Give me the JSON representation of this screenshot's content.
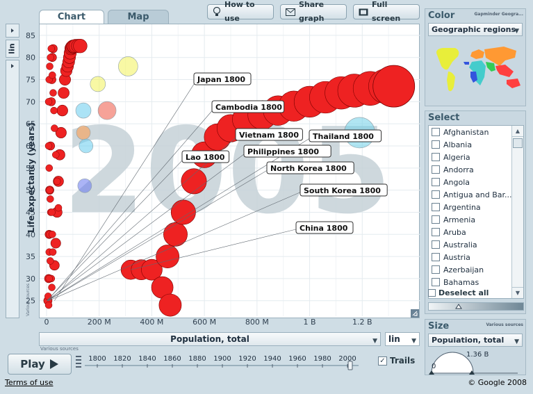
{
  "tabs": {
    "chart": "Chart",
    "map": "Map"
  },
  "toolbar": {
    "how_to_use": "How to use",
    "share": "Share graph",
    "fullscreen": "Full screen"
  },
  "yaxis": {
    "label": "Life expectancy (years)",
    "scale": "lin",
    "sources": "Various sources"
  },
  "xaxis": {
    "label": "Population, total",
    "scale": "lin",
    "sources": "Various sources"
  },
  "year_watermark": "2005",
  "chart_data": {
    "type": "scatter",
    "xlabel": "Population, total",
    "ylabel": "Life expectancy (years)",
    "xlim": [
      0,
      1400
    ],
    "ylim": [
      21.5,
      87.5
    ],
    "x_unit": "M",
    "x_ticks": [
      0,
      200,
      400,
      600,
      800,
      1000,
      1200
    ],
    "x_tick_labels": [
      "0",
      "200 M",
      "400 M",
      "600 M",
      "800 M",
      "1 B",
      "1.2 B"
    ],
    "y_ticks": [
      25,
      30,
      35,
      40,
      45,
      50,
      55,
      60,
      65,
      70,
      75,
      80,
      85
    ],
    "year": 2005,
    "labels": [
      {
        "name": "Japan 1800",
        "x": 30,
        "y": 25
      },
      {
        "name": "Cambodia 1800",
        "x": 3,
        "y": 25
      },
      {
        "name": "Vietnam 1800",
        "x": 7,
        "y": 25
      },
      {
        "name": "Lao 1800",
        "x": 1,
        "y": 25
      },
      {
        "name": "Thailand 1800",
        "x": 4,
        "y": 25
      },
      {
        "name": "Philippines 1800",
        "x": 2,
        "y": 25
      },
      {
        "name": "North Korea 1800",
        "x": 5,
        "y": 25
      },
      {
        "name": "South Korea 1800",
        "x": 8,
        "y": 25
      },
      {
        "name": "China 1800",
        "x": 320,
        "y": 32
      }
    ],
    "trails": [
      {
        "name": "China",
        "color": "#ee2222",
        "points": [
          [
            320,
            32
          ],
          [
            360,
            32
          ],
          [
            400,
            32
          ],
          [
            440,
            28
          ],
          [
            470,
            24
          ],
          [
            460,
            35
          ],
          [
            490,
            40
          ],
          [
            520,
            45
          ],
          [
            560,
            52
          ],
          [
            600,
            58
          ],
          [
            650,
            62
          ],
          [
            700,
            64
          ],
          [
            760,
            66
          ],
          [
            820,
            67
          ],
          [
            880,
            68
          ],
          [
            940,
            69
          ],
          [
            1000,
            70
          ],
          [
            1060,
            71
          ],
          [
            1120,
            72
          ],
          [
            1170,
            72.5
          ],
          [
            1230,
            73
          ],
          [
            1290,
            73.5
          ],
          [
            1320,
            73.5
          ]
        ]
      },
      {
        "name": "Japan",
        "color": "#ee2222",
        "points": [
          [
            30,
            33
          ],
          [
            35,
            38
          ],
          [
            40,
            45
          ],
          [
            45,
            52
          ],
          [
            50,
            58
          ],
          [
            55,
            63
          ],
          [
            60,
            68
          ],
          [
            65,
            72
          ],
          [
            70,
            75
          ],
          [
            75,
            77
          ],
          [
            80,
            78
          ],
          [
            84,
            79
          ],
          [
            87,
            80
          ],
          [
            90,
            81
          ],
          [
            93,
            82
          ],
          [
            96,
            82.3
          ],
          [
            100,
            82.5
          ],
          [
            104,
            82.5
          ],
          [
            110,
            82.6
          ],
          [
            120,
            82.6
          ],
          [
            128,
            82.6
          ]
        ]
      },
      {
        "name": "Other Asia",
        "color": "#ee2222",
        "points": [
          [
            5,
            25
          ],
          [
            8,
            30
          ],
          [
            10,
            40
          ],
          [
            12,
            50
          ],
          [
            15,
            60
          ],
          [
            18,
            70
          ],
          [
            20,
            75
          ],
          [
            22,
            80
          ],
          [
            25,
            82
          ]
        ]
      }
    ],
    "bubbles": [
      {
        "x": 1320,
        "y": 73.5,
        "color": "#ee2222",
        "size": 30
      },
      {
        "x": 1190,
        "y": 63,
        "color": "#6fd0e8",
        "size": 22
      },
      {
        "x": 310,
        "y": 78,
        "color": "#f2f25a",
        "size": 14
      },
      {
        "x": 195,
        "y": 74,
        "color": "#f2f25a",
        "size": 11
      },
      {
        "x": 230,
        "y": 68,
        "color": "#ee5544",
        "size": 13
      },
      {
        "x": 140,
        "y": 68,
        "color": "#66ccee",
        "size": 11
      },
      {
        "x": 140,
        "y": 63,
        "color": "#ff9944",
        "size": 10
      },
      {
        "x": 150,
        "y": 60,
        "color": "#66ccee",
        "size": 10
      },
      {
        "x": 145,
        "y": 51,
        "color": "#6677ee",
        "size": 10
      }
    ]
  },
  "sources_note": "Various sources",
  "play": {
    "label": "Play"
  },
  "timeline": {
    "years": [
      "1800",
      "1820",
      "1840",
      "1860",
      "1880",
      "1900",
      "1920",
      "1940",
      "1960",
      "1980",
      "2000"
    ],
    "current": 2005
  },
  "trails": {
    "label": "Trails",
    "checked": true
  },
  "color_panel": {
    "title": "Color",
    "source": "Gapminder Geogra...",
    "selected": "Geographic regions"
  },
  "select_panel": {
    "title": "Select",
    "items": [
      "Afghanistan",
      "Albania",
      "Algeria",
      "Andorra",
      "Angola",
      "Antigua and Bar...",
      "Argentina",
      "Armenia",
      "Aruba",
      "Australia",
      "Austria",
      "Azerbaijan",
      "Bahamas"
    ],
    "deselect": "Deselect all"
  },
  "size_panel": {
    "title": "Size",
    "sources": "Various sources",
    "selected": "Population, total",
    "value": "1.36 B",
    "min": "0"
  },
  "footer": {
    "terms": "Terms of use",
    "copyright": "© Google 2008"
  },
  "colors": {
    "accent": "#3b5a6b",
    "trail": "#ee2222",
    "watermark": "#c6d2d8"
  }
}
